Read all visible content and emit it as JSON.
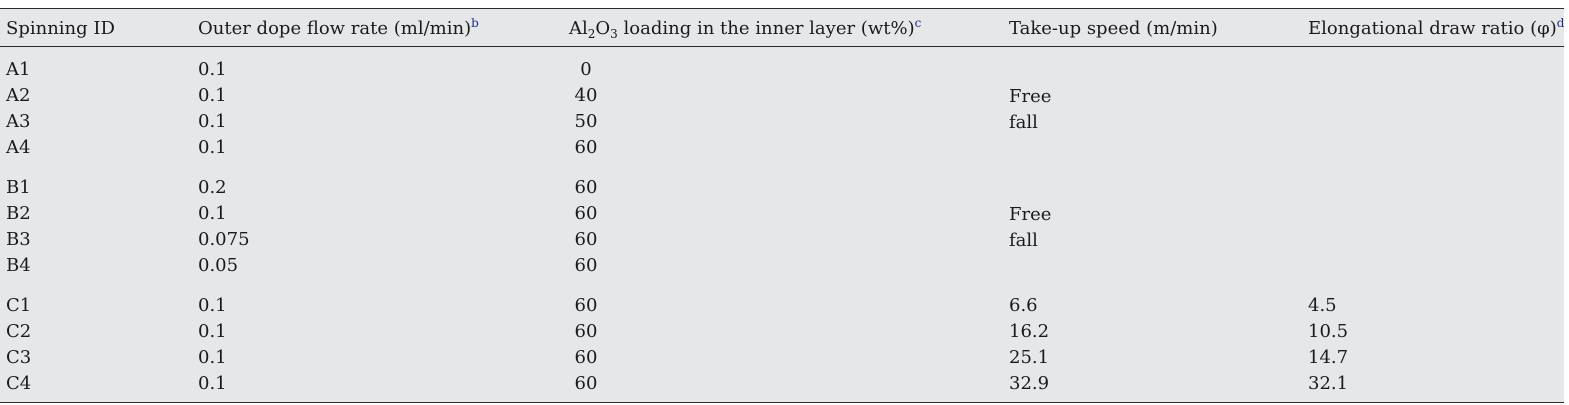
{
  "table": {
    "headers": {
      "spinning_id": "Spinning ID",
      "flow_rate": "Outer dope flow rate (ml/min)",
      "flow_rate_note": "b",
      "al_part1": "Al",
      "al_sub1": "2",
      "al_part2": "O",
      "al_sub2": "3",
      "al_part3": " loading in the inner layer (wt%)",
      "al_note": "c",
      "takeup": "Take-up speed (m/min)",
      "draw_ratio": "Elongational draw ratio (φ)",
      "draw_ratio_note": "d"
    },
    "rows": [
      {
        "id": "A1",
        "flow": "0.1",
        "al": "0",
        "speed": "",
        "ratio": ""
      },
      {
        "id": "A2",
        "flow": "0.1",
        "al": "40",
        "speed": "",
        "ratio": ""
      },
      {
        "id": "A3",
        "flow": "0.1",
        "al": "50",
        "speed": "",
        "ratio": ""
      },
      {
        "id": "A4",
        "flow": "0.1",
        "al": "60",
        "speed": "",
        "ratio": ""
      },
      {
        "id": "B1",
        "flow": "0.2",
        "al": "60",
        "speed": "",
        "ratio": ""
      },
      {
        "id": "B2",
        "flow": "0.1",
        "al": "60",
        "speed": "",
        "ratio": ""
      },
      {
        "id": "B3",
        "flow": "0.075",
        "al": "60",
        "speed": "",
        "ratio": ""
      },
      {
        "id": "B4",
        "flow": "0.05",
        "al": "60",
        "speed": "",
        "ratio": ""
      },
      {
        "id": "C1",
        "flow": "0.1",
        "al": "60",
        "speed": "6.6",
        "ratio": "4.5"
      },
      {
        "id": "C2",
        "flow": "0.1",
        "al": "60",
        "speed": "16.2",
        "ratio": "10.5"
      },
      {
        "id": "C3",
        "flow": "0.1",
        "al": "60",
        "speed": "25.1",
        "ratio": "14.7"
      },
      {
        "id": "C4",
        "flow": "0.1",
        "al": "60",
        "speed": "32.9",
        "ratio": "32.1"
      }
    ],
    "group_a_speed": [
      "Free",
      "fall"
    ],
    "group_b_speed": [
      "Free",
      "fall"
    ]
  }
}
